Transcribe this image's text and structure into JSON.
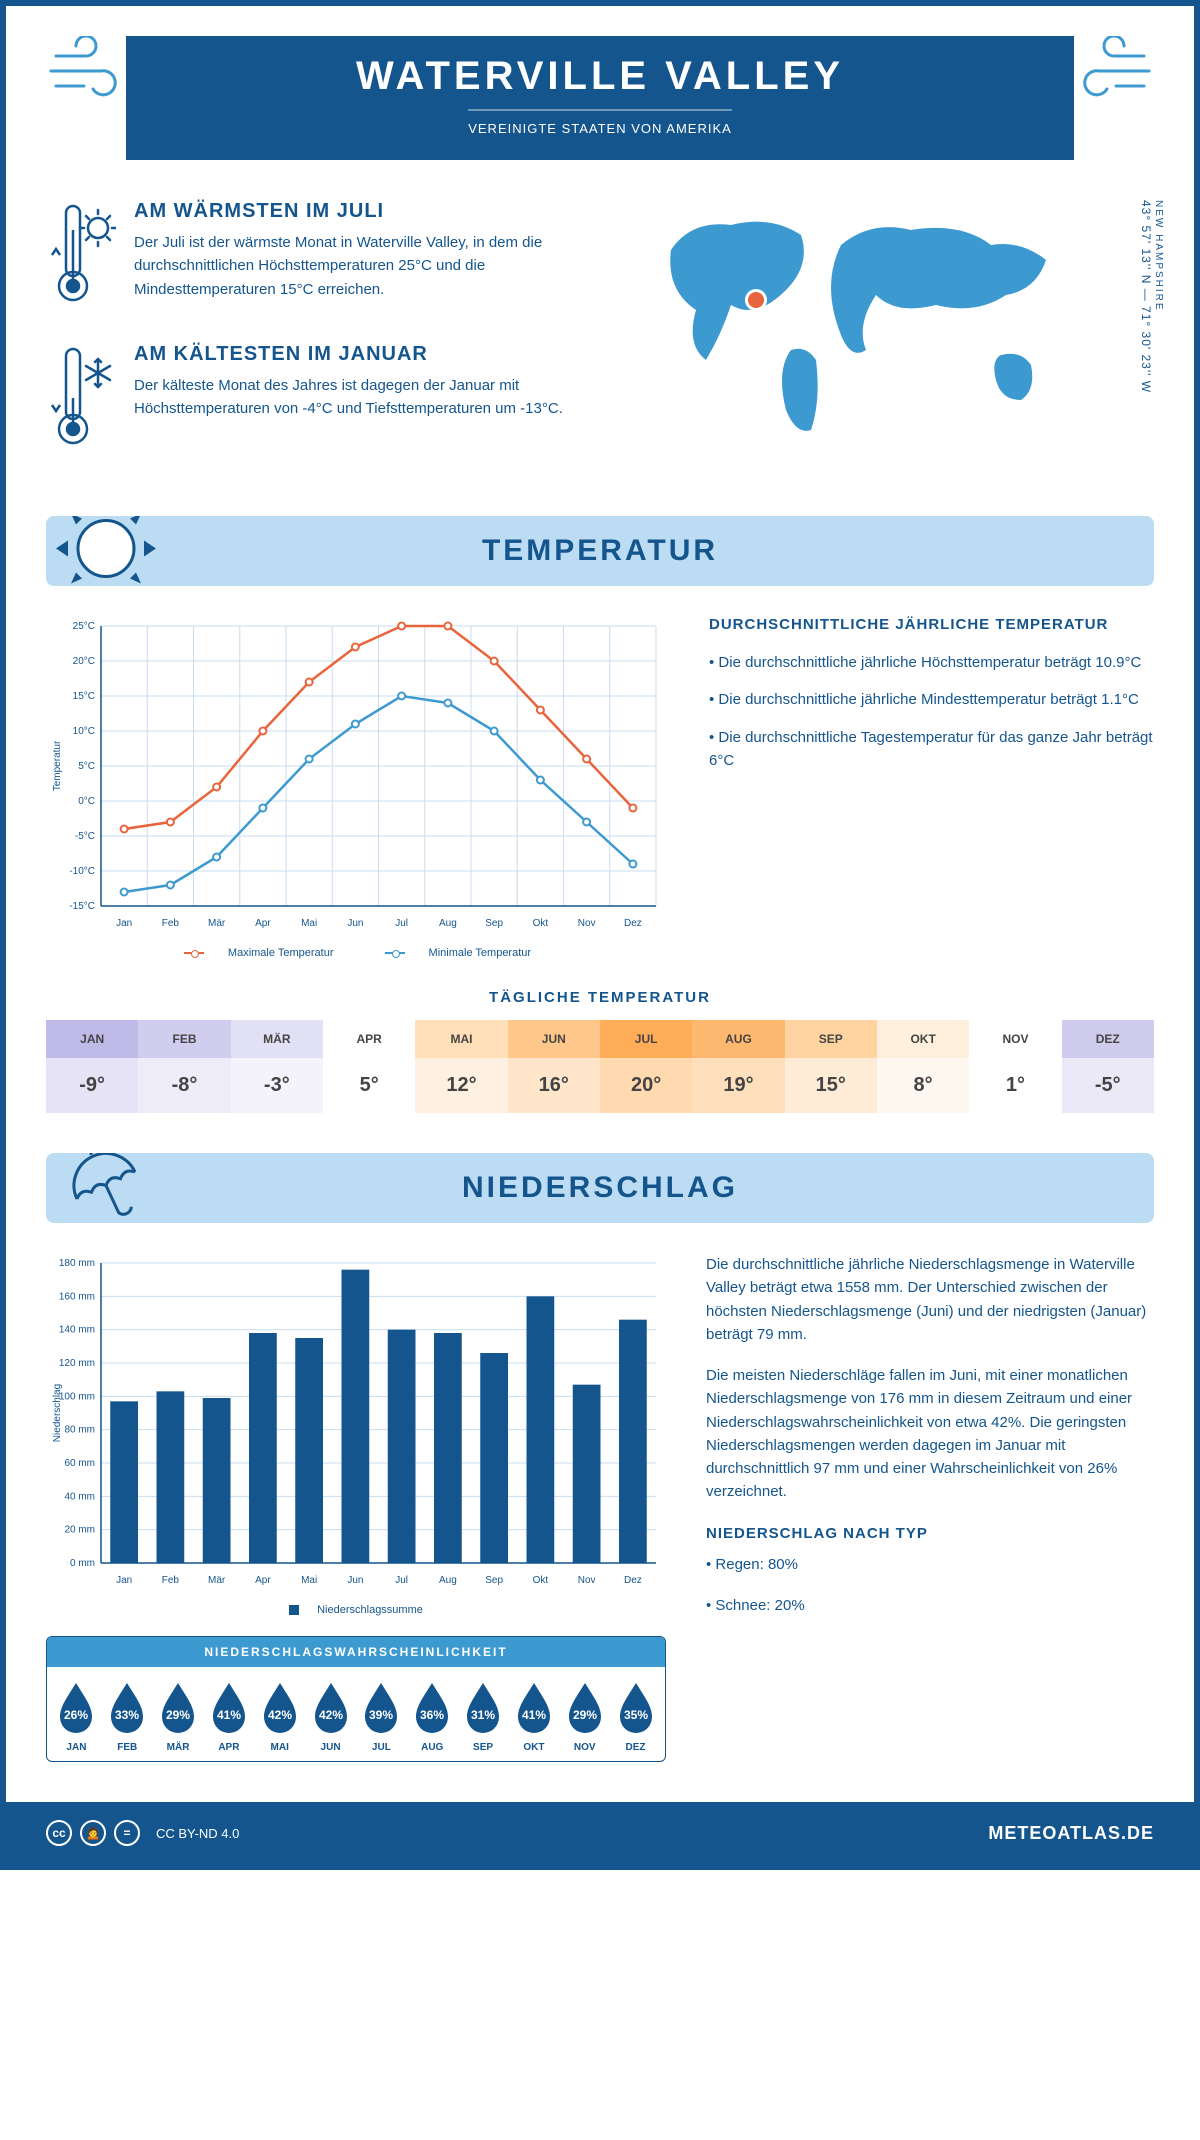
{
  "header": {
    "title": "WATERVILLE VALLEY",
    "subtitle": "VEREINIGTE STAATEN VON AMERIKA"
  },
  "coords": {
    "region": "NEW HAMPSHIRE",
    "text": "43° 57' 13'' N — 71° 30' 23'' W"
  },
  "facts": {
    "warm": {
      "heading": "AM WÄRMSTEN IM JULI",
      "text": "Der Juli ist der wärmste Monat in Waterville Valley, in dem die durchschnittlichen Höchsttemperaturen 25°C und die Mindesttemperaturen 15°C erreichen."
    },
    "cold": {
      "heading": "AM KÄLTESTEN IM JANUAR",
      "text": "Der kälteste Monat des Jahres ist dagegen der Januar mit Höchsttemperaturen von -4°C und Tiefsttemperaturen um -13°C."
    }
  },
  "temp_section": {
    "heading": "TEMPERATUR",
    "sidebar_heading": "DURCHSCHNITTLICHE JÄHRLICHE TEMPERATUR",
    "bullets": [
      "• Die durchschnittliche jährliche Höchsttemperatur beträgt 10.9°C",
      "• Die durchschnittliche jährliche Mindesttemperatur beträgt 1.1°C",
      "• Die durchschnittliche Tagestemperatur für das ganze Jahr beträgt 6°C"
    ],
    "chart": {
      "type": "line",
      "months": [
        "Jan",
        "Feb",
        "Mär",
        "Apr",
        "Mai",
        "Jun",
        "Jul",
        "Aug",
        "Sep",
        "Okt",
        "Nov",
        "Dez"
      ],
      "max_temp": [
        -4,
        -3,
        2,
        10,
        17,
        22,
        25,
        25,
        20,
        13,
        6,
        -1
      ],
      "min_temp": [
        -13,
        -12,
        -8,
        -1,
        6,
        11,
        15,
        14,
        10,
        3,
        -3,
        -9
      ],
      "max_color": "#e8643c",
      "min_color": "#3d9ad1",
      "ylim": [
        -15,
        25
      ],
      "ytick_step": 5,
      "grid_color": "#c9ddf0",
      "background": "#ffffff",
      "ylabel": "Temperatur",
      "legend": {
        "max": "Maximale Temperatur",
        "min": "Minimale Temperatur"
      }
    },
    "daily_heading": "TÄGLICHE TEMPERATUR",
    "daily": {
      "months": [
        "JAN",
        "FEB",
        "MÄR",
        "APR",
        "MAI",
        "JUN",
        "JUL",
        "AUG",
        "SEP",
        "OKT",
        "NOV",
        "DEZ"
      ],
      "values": [
        "-9°",
        "-8°",
        "-3°",
        "5°",
        "12°",
        "16°",
        "20°",
        "19°",
        "15°",
        "8°",
        "1°",
        "-5°"
      ],
      "hdr_colors": [
        "#bfbae8",
        "#d1cdee",
        "#e2e0f4",
        "#ffffff",
        "#ffdfb8",
        "#ffc789",
        "#ffad58",
        "#ffb86f",
        "#ffd4a1",
        "#fff0de",
        "#ffffff",
        "#cfcbed"
      ],
      "val_colors": [
        "#e5e3f5",
        "#edecf8",
        "#f4f3fb",
        "#ffffff",
        "#fff1e1",
        "#ffe6cb",
        "#ffd9af",
        "#ffdfbc",
        "#ffecd6",
        "#fff8f0",
        "#ffffff",
        "#ebe9f7"
      ]
    }
  },
  "precip_section": {
    "heading": "NIEDERSCHLAG",
    "chart": {
      "type": "bar",
      "months": [
        "Jan",
        "Feb",
        "Mär",
        "Apr",
        "Mai",
        "Jun",
        "Jul",
        "Aug",
        "Sep",
        "Okt",
        "Nov",
        "Dez"
      ],
      "values": [
        97,
        103,
        99,
        138,
        135,
        176,
        140,
        138,
        126,
        160,
        107,
        146
      ],
      "bar_color": "#14558d",
      "ylim": [
        0,
        180
      ],
      "ytick_step": 20,
      "grid_color": "#c9ddf0",
      "ylabel": "Niederschlag",
      "legend": "Niederschlagssumme"
    },
    "text": {
      "p1": "Die durchschnittliche jährliche Niederschlagsmenge in Waterville Valley beträgt etwa 1558 mm. Der Unterschied zwischen der höchsten Niederschlagsmenge (Juni) und der niedrigsten (Januar) beträgt 79 mm.",
      "p2": "Die meisten Niederschläge fallen im Juni, mit einer monatlichen Niederschlagsmenge von 176 mm in diesem Zeitraum und einer Niederschlagswahrscheinlichkeit von etwa 42%. Die geringsten Niederschlagsmengen werden dagegen im Januar mit durchschnittlich 97 mm und einer Wahrscheinlichkeit von 26% verzeichnet.",
      "type_heading": "NIEDERSCHLAG NACH TYP",
      "type_bullets": [
        "• Regen: 80%",
        "• Schnee: 20%"
      ]
    },
    "prob": {
      "heading": "NIEDERSCHLAGSWAHRSCHEINLICHKEIT",
      "months": [
        "JAN",
        "FEB",
        "MÄR",
        "APR",
        "MAI",
        "JUN",
        "JUL",
        "AUG",
        "SEP",
        "OKT",
        "NOV",
        "DEZ"
      ],
      "values": [
        "26%",
        "33%",
        "29%",
        "41%",
        "42%",
        "42%",
        "39%",
        "36%",
        "31%",
        "41%",
        "29%",
        "35%"
      ],
      "drop_color": "#14558d"
    }
  },
  "footer": {
    "license": "CC BY-ND 4.0",
    "site": "METEOATLAS.DE"
  },
  "colors": {
    "brand": "#14558d",
    "section_bg": "#bbdcf2",
    "accent_blue": "#3d9ad1"
  }
}
